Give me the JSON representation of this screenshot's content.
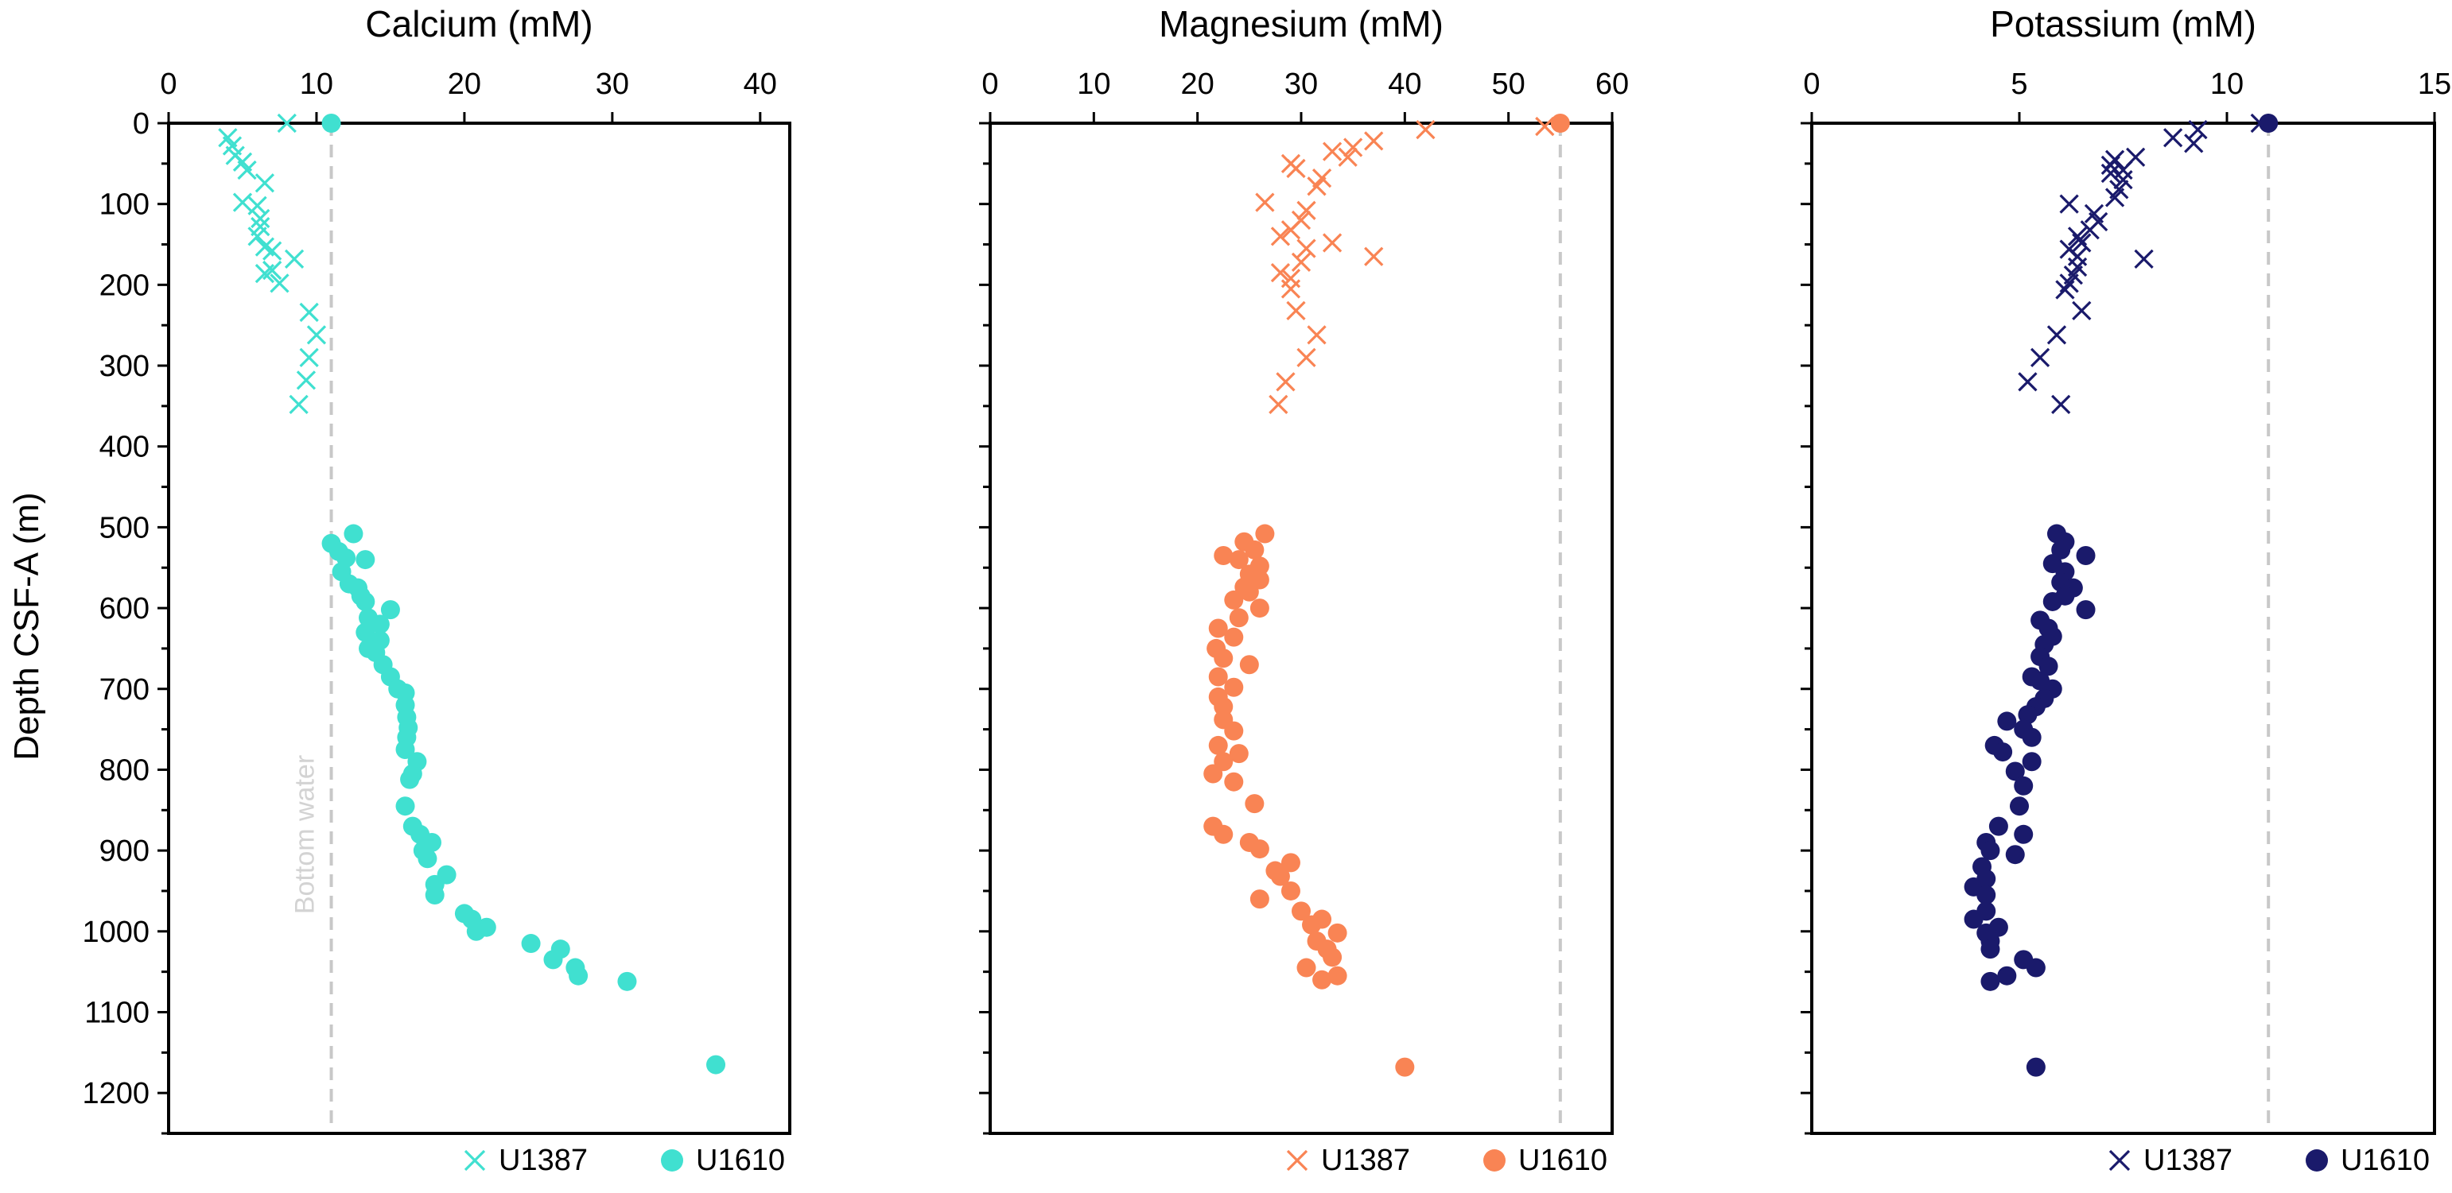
{
  "figure": {
    "y_axis_label": "Depth CSF-A (m)",
    "bottom_water_label": "Bottom water",
    "y_ticks": [
      0,
      100,
      200,
      300,
      400,
      500,
      600,
      700,
      800,
      900,
      1000,
      1100,
      1200
    ]
  },
  "colors": {
    "calcium": "#40E0D0",
    "magnesium": "#F98454",
    "potassium": "#1A1A6B",
    "bottom_water_line": "#C8C8C8",
    "axis": "#000000"
  },
  "chart_data": [
    {
      "type": "scatter",
      "title": "Calcium (mM)",
      "xlim": [
        0,
        42
      ],
      "ylim": [
        1250,
        0
      ],
      "x_ticks": [
        0,
        10,
        20,
        30,
        40
      ],
      "bottom_water": 11,
      "color": "#40E0D0",
      "legend": [
        "U1387",
        "U1610"
      ],
      "series": [
        {
          "name": "U1387",
          "marker": "x",
          "points": [
            [
              8,
              0
            ],
            [
              4,
              18
            ],
            [
              4.3,
              28
            ],
            [
              4.5,
              40
            ],
            [
              5,
              48
            ],
            [
              5.3,
              58
            ],
            [
              6.5,
              74
            ],
            [
              5,
              98
            ],
            [
              6,
              102
            ],
            [
              6.2,
              118
            ],
            [
              6.2,
              128
            ],
            [
              6,
              140
            ],
            [
              6.5,
              153
            ],
            [
              7,
              158
            ],
            [
              8.5,
              168
            ],
            [
              7,
              182
            ],
            [
              6.5,
              186
            ],
            [
              7.5,
              198
            ],
            [
              9.5,
              234
            ],
            [
              10,
              262
            ],
            [
              9.5,
              290
            ],
            [
              9.3,
              318
            ],
            [
              8.8,
              348
            ]
          ]
        },
        {
          "name": "U1610",
          "marker": "o",
          "points": [
            [
              11,
              0
            ],
            [
              12.5,
              508
            ],
            [
              11,
              520
            ],
            [
              11.5,
              530
            ],
            [
              12,
              538
            ],
            [
              13.3,
              540
            ],
            [
              11.7,
              555
            ],
            [
              12.2,
              570
            ],
            [
              12.8,
              575
            ],
            [
              13,
              585
            ],
            [
              13.3,
              592
            ],
            [
              15,
              602
            ],
            [
              13.5,
              612
            ],
            [
              14.3,
              620
            ],
            [
              13.3,
              630
            ],
            [
              14.3,
              640
            ],
            [
              13.5,
              650
            ],
            [
              14,
              655
            ],
            [
              14.5,
              670
            ],
            [
              15,
              685
            ],
            [
              15.5,
              700
            ],
            [
              16,
              705
            ],
            [
              16,
              720
            ],
            [
              16.1,
              735
            ],
            [
              16.2,
              748
            ],
            [
              16.1,
              760
            ],
            [
              16,
              775
            ],
            [
              16.8,
              790
            ],
            [
              16.5,
              805
            ],
            [
              16.3,
              812
            ],
            [
              16,
              845
            ],
            [
              16.5,
              870
            ],
            [
              17,
              880
            ],
            [
              17.8,
              890
            ],
            [
              17.2,
              900
            ],
            [
              17.5,
              910
            ],
            [
              18.8,
              930
            ],
            [
              18,
              942
            ],
            [
              18,
              955
            ],
            [
              20,
              978
            ],
            [
              20.5,
              985
            ],
            [
              21.5,
              995
            ],
            [
              20.8,
              1000
            ],
            [
              24.5,
              1015
            ],
            [
              26.5,
              1022
            ],
            [
              26,
              1035
            ],
            [
              27.5,
              1045
            ],
            [
              27.7,
              1055
            ],
            [
              31,
              1062
            ],
            [
              37,
              1165
            ]
          ]
        }
      ]
    },
    {
      "type": "scatter",
      "title": "Magnesium (mM)",
      "xlim": [
        0,
        60
      ],
      "ylim": [
        1250,
        0
      ],
      "x_ticks": [
        0,
        10,
        20,
        30,
        40,
        50,
        60
      ],
      "bottom_water": 55,
      "color": "#F98454",
      "legend": [
        "U1387",
        "U1610"
      ],
      "series": [
        {
          "name": "U1387",
          "marker": "x",
          "points": [
            [
              42,
              8
            ],
            [
              53.5,
              4
            ],
            [
              37,
              22
            ],
            [
              35,
              30
            ],
            [
              33,
              35
            ],
            [
              34.5,
              42
            ],
            [
              29,
              50
            ],
            [
              29.5,
              56
            ],
            [
              32,
              68
            ],
            [
              31.5,
              78
            ],
            [
              26.5,
              98
            ],
            [
              30.5,
              108
            ],
            [
              30,
              120
            ],
            [
              29,
              132
            ],
            [
              28,
              140
            ],
            [
              33,
              148
            ],
            [
              30.5,
              155
            ],
            [
              37,
              165
            ],
            [
              30,
              172
            ],
            [
              28,
              185
            ],
            [
              29,
              192
            ],
            [
              29,
              205
            ],
            [
              29.5,
              232
            ],
            [
              31.5,
              262
            ],
            [
              30.5,
              290
            ],
            [
              28.5,
              320
            ],
            [
              27.8,
              348
            ]
          ]
        },
        {
          "name": "U1610",
          "marker": "o",
          "points": [
            [
              55,
              0
            ],
            [
              26.5,
              508
            ],
            [
              24.5,
              518
            ],
            [
              25.5,
              528
            ],
            [
              22.5,
              535
            ],
            [
              24,
              540
            ],
            [
              26,
              548
            ],
            [
              25,
              558
            ],
            [
              26,
              565
            ],
            [
              24.5,
              574
            ],
            [
              25,
              580
            ],
            [
              23.5,
              590
            ],
            [
              26,
              600
            ],
            [
              24,
              612
            ],
            [
              22,
              625
            ],
            [
              23.5,
              636
            ],
            [
              21.8,
              650
            ],
            [
              22.5,
              662
            ],
            [
              25,
              670
            ],
            [
              22,
              685
            ],
            [
              23.5,
              698
            ],
            [
              22,
              710
            ],
            [
              22.5,
              722
            ],
            [
              22.5,
              738
            ],
            [
              23.5,
              752
            ],
            [
              22,
              770
            ],
            [
              24,
              780
            ],
            [
              22.5,
              790
            ],
            [
              21.5,
              805
            ],
            [
              23.5,
              815
            ],
            [
              25.5,
              842
            ],
            [
              21.5,
              870
            ],
            [
              22.5,
              880
            ],
            [
              25,
              890
            ],
            [
              26,
              898
            ],
            [
              29,
              915
            ],
            [
              27.5,
              925
            ],
            [
              28,
              932
            ],
            [
              29,
              950
            ],
            [
              26,
              960
            ],
            [
              30,
              975
            ],
            [
              32,
              985
            ],
            [
              31,
              992
            ],
            [
              33.5,
              1002
            ],
            [
              31.5,
              1012
            ],
            [
              32.5,
              1022
            ],
            [
              33,
              1032
            ],
            [
              30.5,
              1045
            ],
            [
              33.5,
              1055
            ],
            [
              32,
              1060
            ],
            [
              40,
              1168
            ]
          ]
        }
      ]
    },
    {
      "type": "scatter",
      "title": "Potassium (mM)",
      "xlim": [
        0,
        15
      ],
      "ylim": [
        1250,
        0
      ],
      "x_ticks": [
        0,
        5,
        10,
        15
      ],
      "bottom_water": 11,
      "color": "#1A1A6B",
      "legend": [
        "U1387",
        "U1610"
      ],
      "series": [
        {
          "name": "U1387",
          "marker": "x",
          "points": [
            [
              10.8,
              0
            ],
            [
              9.3,
              8
            ],
            [
              8.7,
              18
            ],
            [
              9.2,
              25
            ],
            [
              7.8,
              42
            ],
            [
              7.3,
              45
            ],
            [
              7.2,
              52
            ],
            [
              7.5,
              58
            ],
            [
              7.2,
              62
            ],
            [
              7.5,
              70
            ],
            [
              7.4,
              82
            ],
            [
              7.3,
              92
            ],
            [
              6.2,
              100
            ],
            [
              6.8,
              112
            ],
            [
              6.9,
              122
            ],
            [
              6.7,
              132
            ],
            [
              6.4,
              140
            ],
            [
              6.5,
              148
            ],
            [
              6.2,
              156
            ],
            [
              6.4,
              165
            ],
            [
              8,
              168
            ],
            [
              6.4,
              178
            ],
            [
              6.3,
              188
            ],
            [
              6.2,
              198
            ],
            [
              6.1,
              206
            ],
            [
              6.5,
              232
            ],
            [
              5.9,
              262
            ],
            [
              5.5,
              290
            ],
            [
              5.2,
              320
            ],
            [
              6,
              348
            ]
          ]
        },
        {
          "name": "U1610",
          "marker": "o",
          "points": [
            [
              11,
              0
            ],
            [
              5.9,
              508
            ],
            [
              6.1,
              518
            ],
            [
              6,
              528
            ],
            [
              6.6,
              535
            ],
            [
              5.8,
              545
            ],
            [
              6.1,
              555
            ],
            [
              6,
              568
            ],
            [
              6.3,
              575
            ],
            [
              6.1,
              585
            ],
            [
              5.8,
              592
            ],
            [
              6.6,
              602
            ],
            [
              5.5,
              615
            ],
            [
              5.7,
              625
            ],
            [
              5.8,
              635
            ],
            [
              5.6,
              645
            ],
            [
              5.5,
              660
            ],
            [
              5.7,
              672
            ],
            [
              5.3,
              685
            ],
            [
              5.5,
              690
            ],
            [
              5.8,
              700
            ],
            [
              5.6,
              712
            ],
            [
              5.4,
              722
            ],
            [
              5.2,
              732
            ],
            [
              4.7,
              740
            ],
            [
              5.1,
              750
            ],
            [
              5.3,
              760
            ],
            [
              4.4,
              770
            ],
            [
              4.6,
              778
            ],
            [
              5.3,
              790
            ],
            [
              4.9,
              802
            ],
            [
              5.1,
              820
            ],
            [
              5,
              845
            ],
            [
              4.5,
              870
            ],
            [
              5.1,
              880
            ],
            [
              4.2,
              890
            ],
            [
              4.3,
              900
            ],
            [
              4.9,
              905
            ],
            [
              4.1,
              920
            ],
            [
              4.2,
              935
            ],
            [
              3.9,
              945
            ],
            [
              4.2,
              955
            ],
            [
              4.2,
              975
            ],
            [
              3.9,
              985
            ],
            [
              4.5,
              995
            ],
            [
              4.2,
              1002
            ],
            [
              4.3,
              1012
            ],
            [
              4.3,
              1022
            ],
            [
              5.1,
              1035
            ],
            [
              5.4,
              1045
            ],
            [
              4.7,
              1055
            ],
            [
              4.3,
              1062
            ],
            [
              5.4,
              1168
            ]
          ]
        }
      ]
    }
  ]
}
